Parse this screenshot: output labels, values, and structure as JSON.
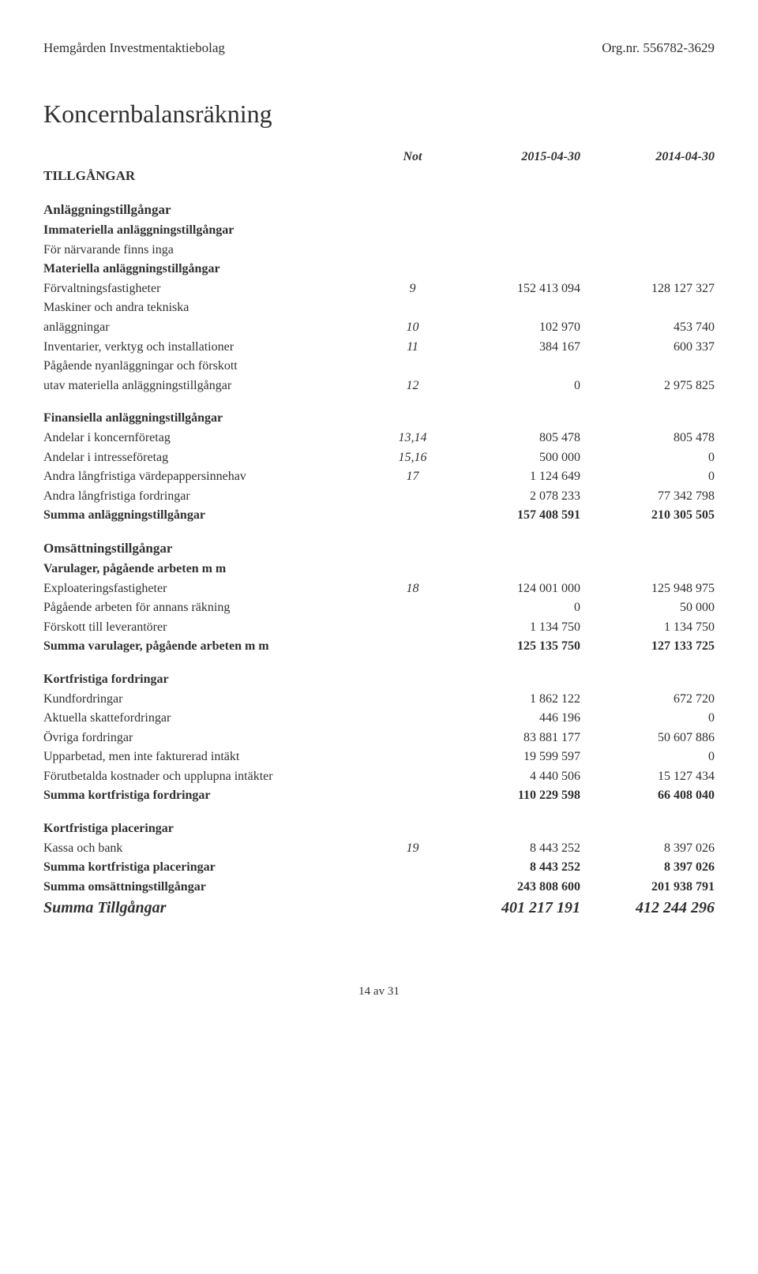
{
  "header": {
    "left": "Hemgården Investmentaktiebolag",
    "right": "Org.nr. 556782-3629"
  },
  "title": "Koncernbalansräkning",
  "columns": {
    "note": "Not",
    "c1": "2015-04-30",
    "c2": "2014-04-30"
  },
  "s_tillgangar": "TILLGÅNGAR",
  "s_anl": "Anläggningstillgångar",
  "imm": {
    "h": "Immateriella anläggningstillgångar",
    "r1": "För närvarande finns inga"
  },
  "mat": {
    "h": "Materiella anläggningstillgångar",
    "r1": {
      "l": "Förvaltningsfastigheter",
      "n": "9",
      "v1": "152 413 094",
      "v2": "128 127 327"
    },
    "r2a": {
      "l": "Maskiner och andra tekniska"
    },
    "r2b": {
      "l": "anläggningar",
      "n": "10",
      "v1": "102 970",
      "v2": "453 740"
    },
    "r3": {
      "l": "Inventarier, verktyg och installationer",
      "n": "11",
      "v1": "384 167",
      "v2": "600 337"
    },
    "r4a": {
      "l": "Pågående nyanläggningar och förskott"
    },
    "r4b": {
      "l": "utav materiella anläggningstillgångar",
      "n": "12",
      "v1": "0",
      "v2": "2 975 825"
    }
  },
  "fin": {
    "h": "Finansiella anläggningstillgångar",
    "r1": {
      "l": "Andelar i koncernföretag",
      "n": "13,14",
      "v1": "805 478",
      "v2": "805 478"
    },
    "r2": {
      "l": "Andelar i intresseföretag",
      "n": "15,16",
      "v1": "500 000",
      "v2": "0"
    },
    "r3": {
      "l": "Andra långfristiga värdepappersinnehav",
      "n": "17",
      "v1": "1 124 649",
      "v2": "0"
    },
    "r4": {
      "l": "Andra långfristiga fordringar",
      "v1": "2 078 233",
      "v2": "77 342 798"
    }
  },
  "sum_anl": {
    "l": "Summa anläggningstillgångar",
    "v1": "157 408 591",
    "v2": "210 305 505"
  },
  "s_oms": "Omsättningstillgångar",
  "varu": {
    "h": "Varulager, pågående arbeten m m",
    "r1": {
      "l": "Exploateringsfastigheter",
      "n": "18",
      "v1": "124 001 000",
      "v2": "125 948 975"
    },
    "r2": {
      "l": "Pågående arbeten för annans räkning",
      "v1": "0",
      "v2": "50 000"
    },
    "r3": {
      "l": "Förskott till leverantörer",
      "v1": "1 134 750",
      "v2": "1 134 750"
    },
    "sum": {
      "l": "Summa varulager, pågående arbeten m m",
      "v1": "125 135 750",
      "v2": "127 133 725"
    }
  },
  "kf": {
    "h": "Kortfristiga fordringar",
    "r1": {
      "l": "Kundfordringar",
      "v1": "1 862 122",
      "v2": "672 720"
    },
    "r2": {
      "l": "Aktuella skattefordringar",
      "v1": "446 196",
      "v2": "0"
    },
    "r3": {
      "l": "Övriga fordringar",
      "v1": "83 881 177",
      "v2": "50 607 886"
    },
    "r4": {
      "l": "Upparbetad, men inte fakturerad intäkt",
      "v1": "19 599 597",
      "v2": "0"
    },
    "r5": {
      "l": "Förutbetalda kostnader och upplupna intäkter",
      "v1": "4 440 506",
      "v2": "15 127 434"
    },
    "sum": {
      "l": "Summa kortfristiga fordringar",
      "v1": "110 229 598",
      "v2": "66 408 040"
    }
  },
  "kp": {
    "h": "Kortfristiga placeringar",
    "r1": {
      "l": "Kassa och bank",
      "n": "19",
      "v1": "8 443 252",
      "v2": "8 397 026"
    },
    "sum": {
      "l": "Summa kortfristiga placeringar",
      "v1": "8 443 252",
      "v2": "8 397 026"
    }
  },
  "sum_oms": {
    "l": "Summa omsättningstillgångar",
    "v1": "243 808 600",
    "v2": "201 938 791"
  },
  "grand": {
    "l": "Summa Tillgångar",
    "v1": "401 217 191",
    "v2": "412 244 296"
  },
  "footer": "14 av 31"
}
